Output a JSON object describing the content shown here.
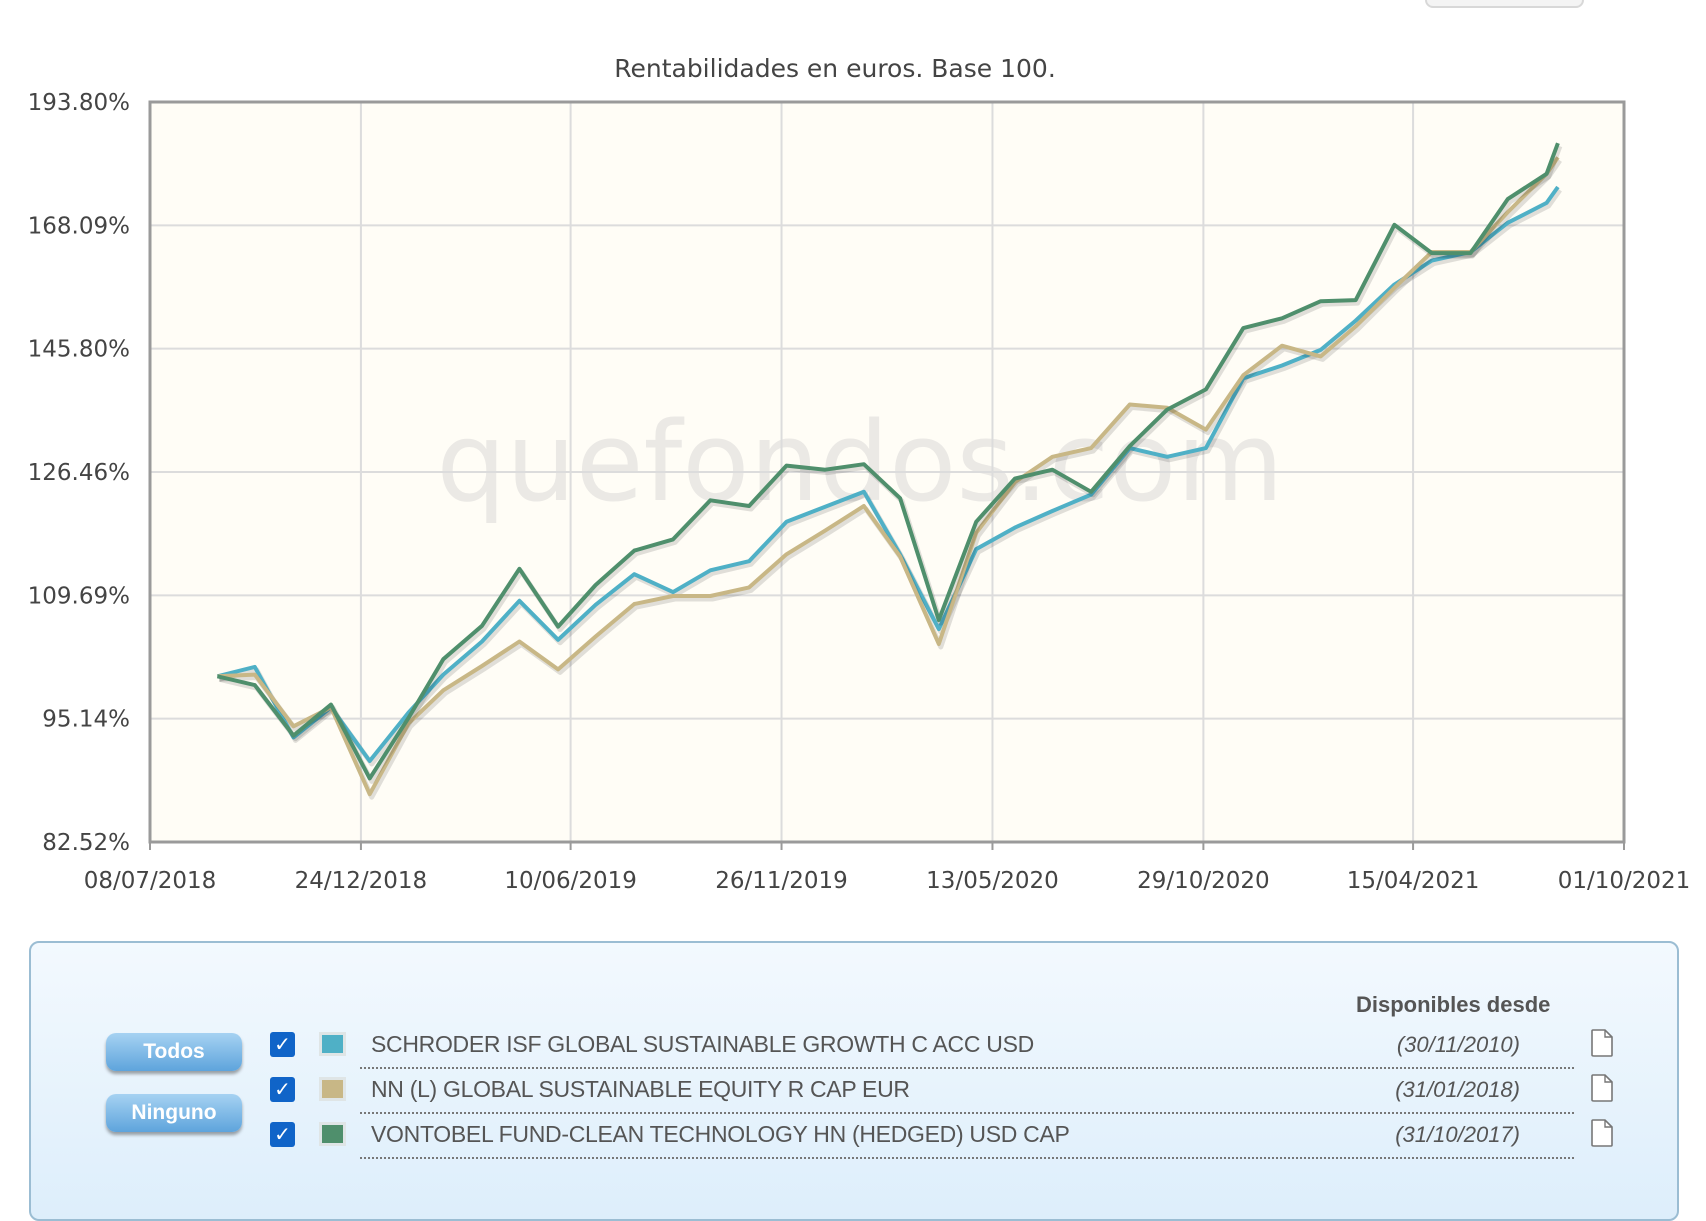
{
  "chart_data": {
    "type": "line",
    "title": "Rentabilidades en euros. Base 100.",
    "watermark": "quefondos.com",
    "y_scale": "log",
    "ylim": [
      82.52,
      193.8
    ],
    "y_ticks": [
      "193.80%",
      "168.09%",
      "145.80%",
      "126.46%",
      "109.69%",
      "95.14%",
      "82.52%"
    ],
    "y_tick_values": [
      193.8,
      168.09,
      145.8,
      126.46,
      109.69,
      95.14,
      82.52
    ],
    "x_ticks": [
      "08/07/2018",
      "24/12/2018",
      "10/06/2019",
      "26/11/2019",
      "13/05/2020",
      "29/10/2020",
      "15/04/2021",
      "01/10/2021"
    ],
    "xlim": [
      "08/07/2018",
      "01/10/2021"
    ],
    "grid": true,
    "x": [
      "31/08/2018",
      "30/09/2018",
      "31/10/2018",
      "30/11/2018",
      "31/12/2018",
      "31/01/2019",
      "28/02/2019",
      "31/03/2019",
      "30/04/2019",
      "31/05/2019",
      "30/06/2019",
      "31/07/2019",
      "31/08/2019",
      "30/09/2019",
      "31/10/2019",
      "30/11/2019",
      "31/12/2019",
      "31/01/2020",
      "29/02/2020",
      "31/03/2020",
      "30/04/2020",
      "31/05/2020",
      "30/06/2020",
      "31/07/2020",
      "31/08/2020",
      "30/09/2020",
      "31/10/2020",
      "30/11/2020",
      "31/12/2020",
      "31/01/2021",
      "28/02/2021",
      "31/03/2021",
      "30/04/2021",
      "31/05/2021",
      "30/06/2021",
      "31/07/2021",
      "09/08/2021"
    ],
    "series": [
      {
        "name": "SCHRODER ISF GLOBAL SUSTAINABLE GROWTH C ACC USD",
        "color": "#4fb0c6",
        "values": [
          99.9,
          101.0,
          93.1,
          96.4,
          90.6,
          95.8,
          100.1,
          104.0,
          109.0,
          104.2,
          108.5,
          112.4,
          110.1,
          112.9,
          114.1,
          119.4,
          121.5,
          123.6,
          115.0,
          105.5,
          115.7,
          118.6,
          120.9,
          123.2,
          130.0,
          128.7,
          130.0,
          140.9,
          143.0,
          145.6,
          150.6,
          157.0,
          161.4,
          163.0,
          168.6,
          172.5,
          175.7
        ]
      },
      {
        "name": "NN (L) GLOBAL SUSTAINABLE EQUITY R CAP EUR",
        "color": "#c8b786",
        "values": [
          99.9,
          100.1,
          94.3,
          96.4,
          87.2,
          94.6,
          98.3,
          101.1,
          104.0,
          100.7,
          104.6,
          108.6,
          109.6,
          109.6,
          110.7,
          115.0,
          118.2,
          121.6,
          114.7,
          103.7,
          117.9,
          125.0,
          128.7,
          130.0,
          136.7,
          136.2,
          132.8,
          141.4,
          146.3,
          144.5,
          149.6,
          156.4,
          163.0,
          163.0,
          170.7,
          178.4,
          181.8
        ]
      },
      {
        "name": "VONTOBEL FUND-CLEAN TECHNOLOGY HN (HEDGED) USD CAP",
        "color": "#4f8f6c",
        "values": [
          99.9,
          98.9,
          93.3,
          96.7,
          88.8,
          95.2,
          101.9,
          105.9,
          113.1,
          105.8,
          111.0,
          115.5,
          117.0,
          122.4,
          121.6,
          127.4,
          126.8,
          127.6,
          122.7,
          106.6,
          119.4,
          125.5,
          126.8,
          123.6,
          130.3,
          135.9,
          139.1,
          149.3,
          151.0,
          154.0,
          154.2,
          168.2,
          162.8,
          162.8,
          173.3,
          178.4,
          184.8
        ]
      }
    ]
  },
  "legend": {
    "todos_label": "Todos",
    "ninguno_label": "Ninguno",
    "available_header": "Disponibles desde",
    "funds": [
      {
        "name": "SCHRODER ISF GLOBAL SUSTAINABLE GROWTH C ACC USD",
        "since": "(30/11/2010)",
        "checked": true,
        "color": "#4fb0c6"
      },
      {
        "name": "NN (L) GLOBAL SUSTAINABLE EQUITY R CAP EUR",
        "since": "(31/01/2018)",
        "checked": true,
        "color": "#c8b786"
      },
      {
        "name": "VONTOBEL FUND-CLEAN TECHNOLOGY HN (HEDGED) USD CAP",
        "since": "(31/10/2017)",
        "checked": true,
        "color": "#4f8f6c"
      }
    ]
  }
}
